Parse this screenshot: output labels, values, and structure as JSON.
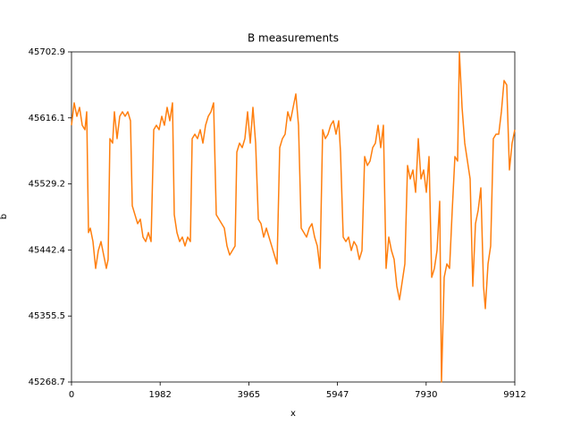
{
  "chart_data": {
    "type": "line",
    "title": "B measurements",
    "x_label": "x",
    "y_label": "b",
    "xlim": [
      0,
      9912
    ],
    "xticks": [
      0,
      1982,
      3965,
      5947,
      7930,
      9912
    ],
    "ylim": [
      45268.7,
      45702.9
    ],
    "yticks": [
      45268.7,
      45355.5,
      45442.4,
      45529.2,
      45616.1,
      45702.9
    ],
    "grid": false,
    "x": [
      0,
      60,
      120,
      180,
      240,
      300,
      340,
      380,
      420,
      480,
      540,
      600,
      659,
      719,
      779,
      819,
      859,
      919,
      959,
      1019,
      1079,
      1139,
      1199,
      1259,
      1319,
      1359,
      1419,
      1479,
      1539,
      1599,
      1659,
      1719,
      1779,
      1839,
      1898,
      1958,
      2018,
      2078,
      2138,
      2198,
      2258,
      2298,
      2358,
      2418,
      2478,
      2538,
      2598,
      2658,
      2698,
      2758,
      2818,
      2878,
      2938,
      2998,
      3058,
      3118,
      3177,
      3237,
      3297,
      3357,
      3417,
      3477,
      3537,
      3597,
      3657,
      3697,
      3757,
      3817,
      3877,
      3937,
      3997,
      4057,
      4117,
      4177,
      4237,
      4297,
      4357,
      4416,
      4476,
      4536,
      4596,
      4656,
      4716,
      4776,
      4836,
      4896,
      4956,
      5016,
      5076,
      5136,
      5196,
      5256,
      5316,
      5376,
      5436,
      5496,
      5556,
      5616,
      5675,
      5735,
      5795,
      5855,
      5915,
      5975,
      6015,
      6075,
      6135,
      6195,
      6255,
      6315,
      6375,
      6435,
      6495,
      6555,
      6615,
      6675,
      6735,
      6795,
      6855,
      6914,
      6974,
      7034,
      7094,
      7154,
      7214,
      7274,
      7334,
      7394,
      7454,
      7514,
      7574,
      7634,
      7694,
      7754,
      7814,
      7874,
      7934,
      7994,
      8054,
      8114,
      8173,
      8233,
      8273,
      8333,
      8393,
      8453,
      8513,
      8573,
      8633,
      8673,
      8733,
      8793,
      8853,
      8913,
      8973,
      9033,
      9093,
      9153,
      9213,
      9253,
      9313,
      9372,
      9432,
      9492,
      9552,
      9612,
      9672,
      9732,
      9792,
      9852,
      9912
    ],
    "series": [
      {
        "color": "#ff7f0e",
        "values": [
          45606.4,
          45635.8,
          45618.2,
          45629.9,
          45606.4,
          45600.5,
          45624.1,
          45465.2,
          45471.1,
          45453.4,
          45418.1,
          45441.7,
          45453.4,
          45435.8,
          45418.1,
          45429.9,
          45588.8,
          45582.9,
          45624.1,
          45588.8,
          45618.2,
          45624.1,
          45618.2,
          45624.1,
          45612.3,
          45500.5,
          45488.7,
          45477.0,
          45482.9,
          45459.3,
          45453.4,
          45465.2,
          45453.4,
          45600.5,
          45606.4,
          45600.5,
          45618.2,
          45606.4,
          45629.9,
          45612.3,
          45635.8,
          45488.7,
          45465.2,
          45453.4,
          45459.3,
          45447.6,
          45459.3,
          45453.4,
          45588.8,
          45594.6,
          45588.8,
          45600.5,
          45582.9,
          45606.4,
          45618.2,
          45624.1,
          45635.8,
          45488.7,
          45482.9,
          45477.0,
          45471.1,
          45447.6,
          45435.8,
          45441.7,
          45447.6,
          45571.1,
          45582.9,
          45577.0,
          45588.8,
          45624.1,
          45582.9,
          45629.9,
          45582.9,
          45482.9,
          45477.0,
          45459.3,
          45471.1,
          45459.3,
          45447.6,
          45435.8,
          45424.0,
          45577.0,
          45588.8,
          45594.6,
          45624.1,
          45612.3,
          45629.9,
          45647.6,
          45606.4,
          45471.1,
          45465.2,
          45459.3,
          45471.1,
          45477.0,
          45459.3,
          45447.6,
          45418.1,
          45600.5,
          45588.8,
          45594.6,
          45606.4,
          45612.3,
          45594.6,
          45612.3,
          45571.1,
          45459.3,
          45453.4,
          45459.3,
          45441.7,
          45453.4,
          45447.6,
          45429.9,
          45441.7,
          45565.2,
          45553.5,
          45559.3,
          45577.0,
          45582.9,
          45606.4,
          45577.0,
          45606.4,
          45418.1,
          45459.3,
          45441.7,
          45429.9,
          45394.6,
          45377.0,
          45400.5,
          45424.0,
          45553.5,
          45535.8,
          45547.6,
          45518.2,
          45588.8,
          45535.8,
          45547.6,
          45518.2,
          45565.2,
          45406.4,
          45418.1,
          45441.7,
          45506.4,
          45268.7,
          45406.4,
          45424.0,
          45418.1,
          45494.6,
          45565.2,
          45559.3,
          45702.9,
          45629.9,
          45582.9,
          45559.3,
          45535.8,
          45394.6,
          45477.0,
          45494.6,
          45524.0,
          45394.6,
          45365.2,
          45424.0,
          45447.6,
          45588.8,
          45594.6,
          45594.6,
          45624.1,
          45665.2,
          45659.4,
          45547.6,
          45582.9,
          45600.5
        ]
      }
    ]
  }
}
